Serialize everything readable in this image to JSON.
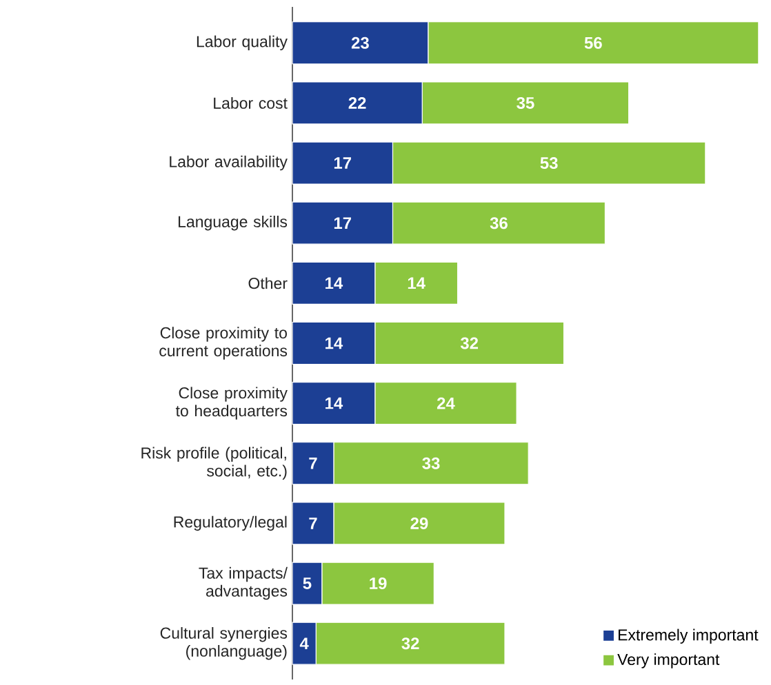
{
  "chart_data": {
    "type": "bar",
    "orientation": "horizontal",
    "stacked": true,
    "data_labels": true,
    "legend": "bottom right",
    "categories": [
      "Labor quality",
      "Labor cost",
      "Labor availability",
      "Language skills",
      "Other",
      "Close proximity to current operations",
      "Close proximity to headquarters",
      "Risk profile (political, social, etc.)",
      "Regulatory/legal",
      "Tax impacts/ advantages",
      "Cultural synergies (nonlanguage)"
    ],
    "series": [
      {
        "name": "Extremely important",
        "color": "#1c3f94",
        "values": [
          23,
          22,
          17,
          17,
          14,
          14,
          14,
          7,
          7,
          5,
          4
        ]
      },
      {
        "name": "Very important",
        "color": "#8cc63f",
        "values": [
          56,
          35,
          53,
          36,
          14,
          32,
          24,
          33,
          29,
          19,
          32
        ]
      }
    ]
  }
}
